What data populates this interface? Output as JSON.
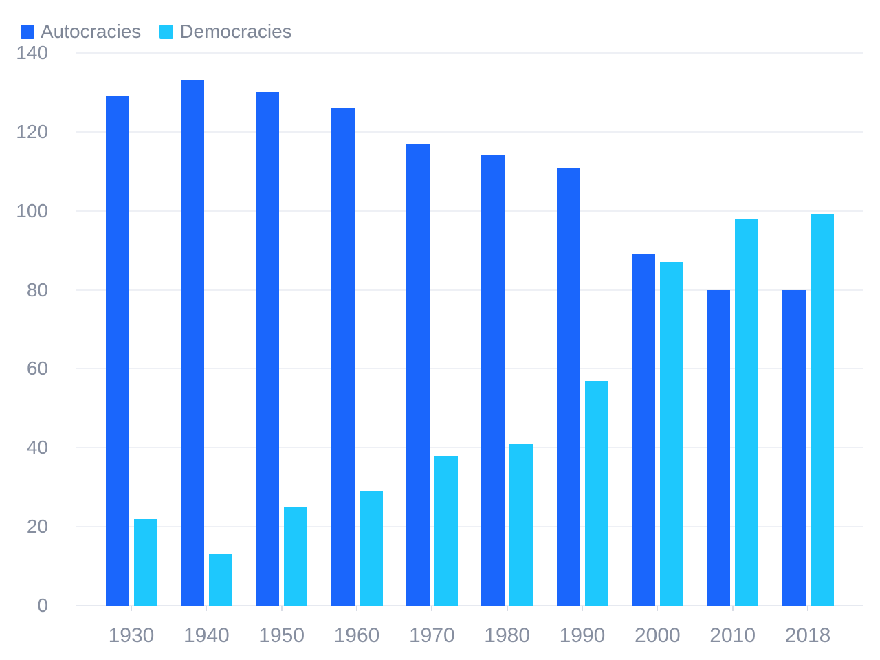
{
  "legend": {
    "items": [
      {
        "label": "Autocracies",
        "color": "#1A66FC"
      },
      {
        "label": "Democracies",
        "color": "#1EC8FD"
      }
    ]
  },
  "chart_data": {
    "type": "bar",
    "title": "",
    "xlabel": "",
    "ylabel": "",
    "categories": [
      "1930",
      "1940",
      "1950",
      "1960",
      "1970",
      "1980",
      "1990",
      "2000",
      "2010",
      "2018"
    ],
    "series": [
      {
        "name": "Autocracies",
        "color": "#1A66FC",
        "values": [
          129,
          133,
          130,
          126,
          117,
          114,
          111,
          89,
          80,
          80
        ]
      },
      {
        "name": "Democracies",
        "color": "#1EC8FD",
        "values": [
          22,
          13,
          25,
          29,
          38,
          41,
          57,
          87,
          98,
          99
        ]
      }
    ],
    "ylim": [
      0,
      140
    ],
    "yticks": [
      0,
      20,
      40,
      60,
      80,
      100,
      120,
      140
    ],
    "grid": true,
    "legend_position": "top-left",
    "colors": {
      "gridline": "#EEF0F5",
      "baseline": "#E6E9F0",
      "tick": "#D9DDE6",
      "axis_text": "#878FA0",
      "legend_text": "#7E8696",
      "background": "#FFFFFF"
    }
  }
}
